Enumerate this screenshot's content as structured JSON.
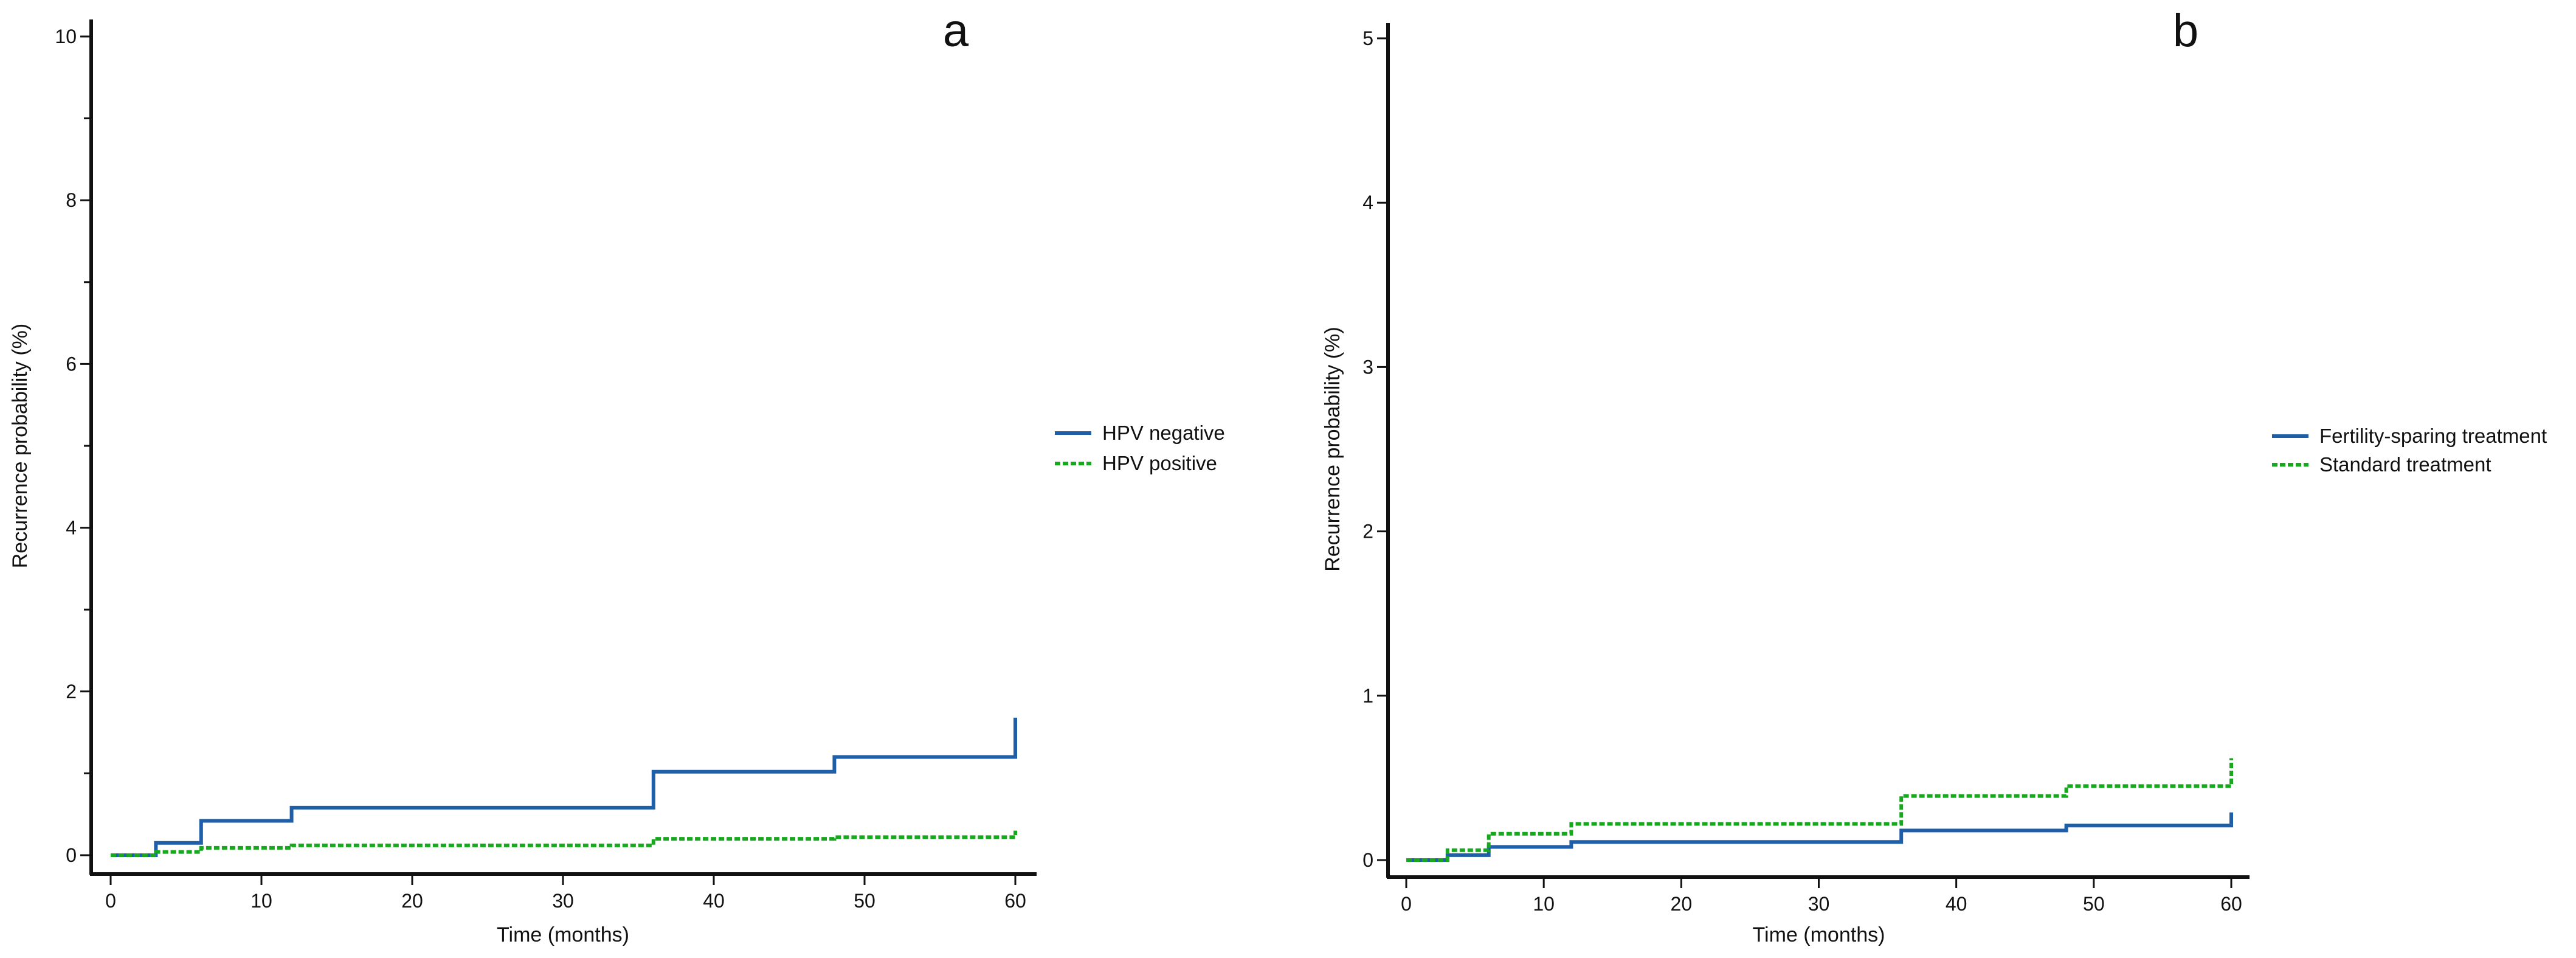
{
  "chart_data": [
    {
      "type": "line",
      "step": true,
      "panel_label": "a",
      "title": "",
      "xlabel": "Time (months)",
      "ylabel": "Recurrence probability (%)",
      "xlim": [
        0,
        60
      ],
      "ylim": [
        0,
        10
      ],
      "x_ticks": [
        0,
        10,
        20,
        30,
        40,
        50,
        60
      ],
      "y_ticks": [
        0,
        2,
        4,
        6,
        8,
        10
      ],
      "y_minor_ticks": [
        1,
        3,
        5,
        7,
        9
      ],
      "legend_position": "right",
      "series": [
        {
          "name": "HPV negative",
          "color": "#1f5fa8",
          "dash": "solid",
          "x": [
            0,
            3,
            6,
            12,
            36,
            48,
            60,
            60
          ],
          "y": [
            0,
            0.15,
            0.42,
            0.58,
            1.02,
            1.2,
            1.2,
            1.68
          ]
        },
        {
          "name": "HPV positive",
          "color": "#17a81f",
          "dash": "dashed",
          "x": [
            0,
            3,
            6,
            12,
            36,
            48,
            60,
            60
          ],
          "y": [
            0,
            0.04,
            0.09,
            0.12,
            0.2,
            0.22,
            0.22,
            0.3
          ]
        }
      ]
    },
    {
      "type": "line",
      "step": true,
      "panel_label": "b",
      "title": "",
      "xlabel": "Time (months)",
      "ylabel": "Recurrence probability (%)",
      "xlim": [
        0,
        60
      ],
      "ylim": [
        0,
        5
      ],
      "x_ticks": [
        0,
        10,
        20,
        30,
        40,
        50,
        60
      ],
      "y_ticks": [
        0,
        1,
        2,
        3,
        4,
        5
      ],
      "y_minor_ticks": [],
      "legend_position": "right",
      "series": [
        {
          "name": "Fertility-sparing treatment",
          "color": "#1f5fa8",
          "dash": "solid",
          "x": [
            0,
            3,
            6,
            12,
            36,
            48,
            60,
            60
          ],
          "y": [
            0,
            0.03,
            0.08,
            0.11,
            0.18,
            0.21,
            0.21,
            0.29
          ]
        },
        {
          "name": "Standard treatment",
          "color": "#17a81f",
          "dash": "dashed",
          "x": [
            0,
            3,
            6,
            12,
            36,
            48,
            60,
            60
          ],
          "y": [
            0,
            0.06,
            0.16,
            0.22,
            0.39,
            0.45,
            0.45,
            0.62
          ]
        }
      ]
    }
  ]
}
